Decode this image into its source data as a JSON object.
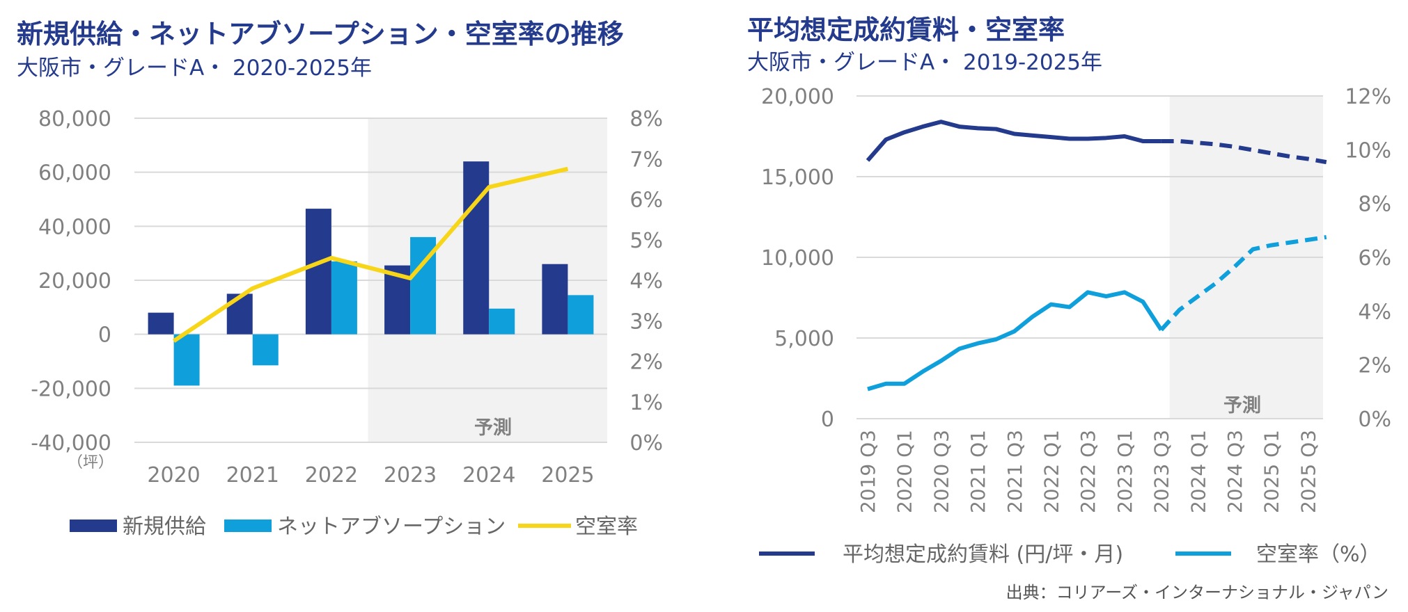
{
  "source": "出典：コリアーズ・インターナショナル・ジャパン",
  "chart_data": [
    {
      "type": "bar",
      "title": "新規供給・ネットアブソープション・空室率の推移",
      "subtitle": "大阪市・グレードA・ 2020-2025年",
      "categories": [
        "2020",
        "2021",
        "2022",
        "2023",
        "2024",
        "2025"
      ],
      "series": [
        {
          "name": "新規供給",
          "type": "bar",
          "axis": "left",
          "color": "#243a8c",
          "values": [
            8000,
            15000,
            46500,
            25500,
            64000,
            26000
          ]
        },
        {
          "name": "ネットアブソープション",
          "type": "bar",
          "axis": "left",
          "color": "#0fa0dc",
          "values": [
            -19000,
            -11500,
            27000,
            36000,
            9500,
            14500
          ]
        },
        {
          "name": "空室率",
          "type": "line",
          "axis": "right",
          "color": "#f7d518",
          "values": [
            2.5,
            3.8,
            4.55,
            4.05,
            6.3,
            6.75
          ]
        }
      ],
      "ylim": [
        -40000,
        80000
      ],
      "y_ticks": [
        "80,000",
        "60,000",
        "40,000",
        "20,000",
        "0",
        "-20,000",
        "-40,000"
      ],
      "y2lim": [
        0,
        8
      ],
      "y2_ticks": [
        "8%",
        "7%",
        "6%",
        "5%",
        "4%",
        "3%",
        "2%",
        "1%",
        "0%"
      ],
      "ylabel": "（坪）",
      "forecast_label": "予測",
      "forecast_from": "2023",
      "legend": [
        "新規供給",
        "ネットアブソープション",
        "空室率"
      ]
    },
    {
      "type": "line",
      "title": "平均想定成約賃料・空室率",
      "subtitle": "大阪市・グレードA・ 2019-2025年",
      "x": [
        "2019 Q3",
        "2019 Q4",
        "2020 Q1",
        "2020 Q2",
        "2020 Q3",
        "2020 Q4",
        "2021 Q1",
        "2021 Q2",
        "2021 Q3",
        "2021 Q4",
        "2022 Q1",
        "2022 Q2",
        "2022 Q3",
        "2022 Q4",
        "2023 Q1",
        "2023 Q2",
        "2023 Q3",
        "2023 Q4",
        "2024 Q1",
        "2024 Q2",
        "2024 Q3",
        "2024 Q4",
        "2025 Q1",
        "2025 Q2",
        "2025 Q3",
        "2025 Q4"
      ],
      "x_tick_labels": [
        "2019 Q3",
        "2020 Q1",
        "2020 Q3",
        "2021 Q1",
        "2021 Q3",
        "2022 Q1",
        "2022 Q3",
        "2023 Q1",
        "2023 Q3",
        "2024 Q1",
        "2024 Q3",
        "2025 Q1",
        "2025 Q3"
      ],
      "series": [
        {
          "name": "平均想定成約賃料 (円/坪・月)",
          "axis": "left",
          "color": "#243a8c",
          "values": [
            16000,
            17300,
            17750,
            18100,
            18400,
            18100,
            18000,
            17950,
            17650,
            17550,
            17450,
            17350,
            17350,
            17400,
            17500,
            17200,
            17200,
            17200,
            17100,
            17000,
            16850,
            16650,
            16450,
            16250,
            16100,
            15900
          ]
        },
        {
          "name": "空室率（%）",
          "axis": "right",
          "color": "#0fa0dc",
          "values": [
            1.1,
            1.3,
            1.3,
            1.75,
            2.15,
            2.6,
            2.8,
            2.95,
            3.25,
            3.8,
            4.25,
            4.15,
            4.7,
            4.55,
            4.7,
            4.35,
            3.3,
            4.05,
            4.55,
            5.05,
            5.65,
            6.3,
            6.45,
            6.55,
            6.65,
            6.75
          ]
        }
      ],
      "forecast_from_index": 16,
      "ylim": [
        0,
        20000
      ],
      "y_ticks": [
        "20,000",
        "15,000",
        "10,000",
        "5,000",
        "0"
      ],
      "y2lim": [
        0,
        12
      ],
      "y2_ticks": [
        "12%",
        "10%",
        "8%",
        "6%",
        "4%",
        "2%",
        "0%"
      ],
      "forecast_label": "予測",
      "legend": [
        "平均想定成約賃料 (円/坪・月)",
        "空室率（%）"
      ]
    }
  ]
}
